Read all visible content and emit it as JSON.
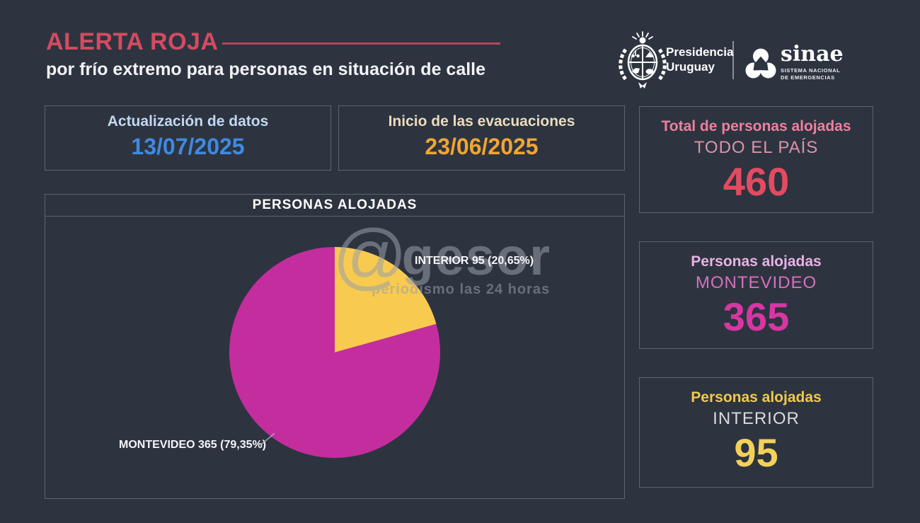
{
  "header": {
    "alert_title": "ALERTA ROJA",
    "subtitle": "por frío extremo para personas en situación de calle",
    "presidencia_line1": "Presidencia",
    "presidencia_line2": "Uruguay",
    "sinae_name": "sinae",
    "sinae_sub1": "SISTEMA NACIONAL",
    "sinae_sub2": "DE EMERGENCIAS"
  },
  "info_boxes": {
    "update": {
      "label": "Actualización de datos",
      "value": "13/07/2025"
    },
    "evacuations": {
      "label": "Inicio de las evacuaciones",
      "value": "23/06/2025"
    }
  },
  "chart_data": {
    "type": "pie",
    "title": "PERSONAS ALOJADAS",
    "start_angle_deg": 0,
    "direction": "clockwise",
    "total": 460,
    "series": [
      {
        "name": "INTERIOR",
        "value": 95,
        "percent_label": "20,65%",
        "color": "#f8ca4f",
        "label_text": "INTERIOR 95 (20,65%)"
      },
      {
        "name": "MONTEVIDEO",
        "value": 365,
        "percent_label": "79,35%",
        "color": "#c42d9e",
        "label_text": "MONTEVIDEO 365 (79,35%)"
      }
    ],
    "legend_position": "none",
    "grid": false
  },
  "stats": {
    "total": {
      "title": "Total de personas alojadas",
      "scope": "TODO EL PAÍS",
      "value": "460"
    },
    "montevideo": {
      "title": "Personas alojadas",
      "scope": "MONTEVIDEO",
      "value": "365"
    },
    "interior": {
      "title": "Personas alojadas",
      "scope": "INTERIOR",
      "value": "95"
    }
  },
  "watermark": {
    "symbol": "@",
    "name": "gesor",
    "tagline": "periodismo las 24 horas"
  },
  "colors": {
    "background": "#2d3440",
    "box_border": "#5b6472",
    "alert_red": "#d44b60",
    "date_blue": "#3e8ae2",
    "date_orange": "#f0a532",
    "total_red": "#e34b61",
    "montevideo_magenta": "#d836a3",
    "interior_yellow": "#f3d159"
  }
}
